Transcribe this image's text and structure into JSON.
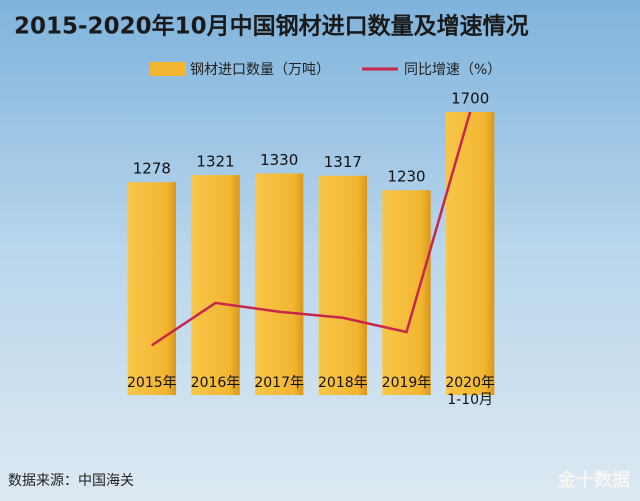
{
  "chart_data": {
    "type": "bar_line",
    "title": "2015-2020年10月中国钢材进口数量及增速情况",
    "categories": [
      "2015年",
      "2016年",
      "2017年",
      "2018年",
      "2019年",
      "2020年\n1-10月"
    ],
    "series": [
      {
        "name": "钢材进口数量（万吨）",
        "color": "#f2b630",
        "type": "bar",
        "values": [
          1278,
          1321,
          1330,
          1317,
          1230,
          1700
        ]
      },
      {
        "name": "同比增速（%）",
        "color": "#c8264a",
        "type": "line",
        "axis": "y2",
        "values": [
          -4.3,
          3.4,
          1.8,
          0.7,
          -1.9,
          38.2
        ]
      }
    ],
    "ylim": [
      0,
      2000
    ],
    "y2lim": [
      -15,
      50
    ],
    "source": "数据来源：中国海关",
    "watermark": "金十数据"
  }
}
